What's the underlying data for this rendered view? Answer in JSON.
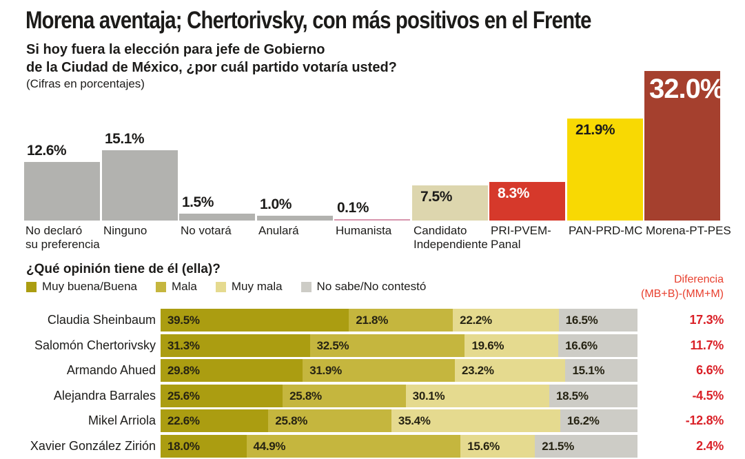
{
  "header": {
    "title": "Morena aventaja; Chertorivsky, con más positivos en el Frente",
    "question_line1": "Si hoy fuera la elección para jefe de Gobierno",
    "question_line2": "de la Ciudad de México, ¿por cuál partido votaría usted?",
    "note": "(Cifras en porcentajes)"
  },
  "colors": {
    "text_dark": "#1c1b19",
    "gray_bar": "#b2b2af",
    "humanista_pink": "#d795ad",
    "beige": "#ddd6ae",
    "pri_red": "#d6392b",
    "pan_yellow": "#f8d903",
    "morena_brick": "#a5402e",
    "seg_muy_buena": "#ab9d11",
    "seg_mala": "#c5b63e",
    "seg_muy_mala": "#e5da8f",
    "seg_no_sabe": "#cdccc6",
    "diff_header_red": "#e8402f",
    "diff_value_red": "#da2128",
    "white": "#ffffff"
  },
  "chart_data": [
    {
      "type": "bar",
      "title": "Si hoy fuera la elección para jefe de Gobierno de la Ciudad de México, ¿por cuál partido votaría usted?",
      "subtitle": "(Cifras en porcentajes)",
      "unit": "percent",
      "ylim": [
        0,
        32
      ],
      "grid": false,
      "categories": [
        "No declaró su preferencia",
        "Ninguno",
        "No votará",
        "Anulará",
        "Humanista",
        "Candidato Independiente",
        "PRI-PVEM-Panal",
        "PAN-PRD-MC",
        "Morena-PT-PES"
      ],
      "values": [
        12.6,
        15.1,
        1.5,
        1.0,
        0.1,
        7.5,
        8.3,
        21.9,
        32.0
      ],
      "bars": [
        {
          "name": "no-declaro",
          "label_lines": [
            "No declaró",
            "su preferencia"
          ],
          "value": 12.6,
          "display": "12.6%",
          "color_key": "gray_bar",
          "value_style": "above-dark"
        },
        {
          "name": "ninguno",
          "label_lines": [
            "Ninguno"
          ],
          "value": 15.1,
          "display": "15.1%",
          "color_key": "gray_bar",
          "value_style": "above-dark"
        },
        {
          "name": "no-votara",
          "label_lines": [
            "No votará"
          ],
          "value": 1.5,
          "display": "1.5%",
          "color_key": "gray_bar",
          "value_style": "above-dark"
        },
        {
          "name": "anulara",
          "label_lines": [
            "Anulará"
          ],
          "value": 1.0,
          "display": "1.0%",
          "color_key": "gray_bar",
          "value_style": "above-dark"
        },
        {
          "name": "humanista",
          "label_lines": [
            "Humanista"
          ],
          "value": 0.1,
          "display": "0.1%",
          "color_key": "humanista_pink",
          "value_style": "above-dark"
        },
        {
          "name": "candidato-independiente",
          "label_lines": [
            "Candidato",
            "Independiente"
          ],
          "value": 7.5,
          "display": "7.5%",
          "color_key": "beige",
          "value_style": "inside-dark"
        },
        {
          "name": "pri-pvem-panal",
          "label_lines": [
            "PRI-PVEM-",
            "Panal"
          ],
          "value": 8.3,
          "display": "8.3%",
          "color_key": "pri_red",
          "value_style": "inside-white"
        },
        {
          "name": "pan-prd-mc",
          "label_lines": [
            "PAN-PRD-MC"
          ],
          "value": 21.9,
          "display": "21.9%",
          "color_key": "pan_yellow",
          "value_style": "inside-dark"
        },
        {
          "name": "morena-pt-pes",
          "label_lines": [
            "Morena-PT-PES"
          ],
          "value": 32.0,
          "display": "32.0%",
          "color_key": "morena_brick",
          "value_style": "inside-white-big"
        }
      ]
    },
    {
      "type": "bar",
      "subtype": "stacked-horizontal-100",
      "title": "¿Qué opinión tiene de él (ella)?",
      "legend": [
        "Muy buena/Buena",
        "Mala",
        "Muy mala",
        "No sabe/No contestó"
      ],
      "legend_color_keys": [
        "seg_muy_buena",
        "seg_mala",
        "seg_muy_mala",
        "seg_no_sabe"
      ],
      "legend_position": "top-left",
      "diff_header": [
        "Diferencia",
        "(MB+B)-(MM+M)"
      ],
      "categories": [
        "Claudia Sheinbaum",
        "Salomón Chertorivsky",
        "Armando Ahued",
        "Alejandra Barrales",
        "Mikel Arriola",
        "Xavier González Zirión"
      ],
      "series": [
        {
          "name": "Muy buena/Buena",
          "color_key": "seg_muy_buena",
          "values": [
            39.5,
            31.3,
            29.8,
            25.6,
            22.6,
            18.0
          ]
        },
        {
          "name": "Mala",
          "color_key": "seg_mala",
          "values": [
            21.8,
            32.5,
            31.9,
            25.8,
            25.8,
            44.9
          ]
        },
        {
          "name": "Muy mala",
          "color_key": "seg_muy_mala",
          "values": [
            22.2,
            19.6,
            23.2,
            30.1,
            35.4,
            15.6
          ]
        },
        {
          "name": "No sabe/No contestó",
          "color_key": "seg_no_sabe",
          "values": [
            16.5,
            16.6,
            15.1,
            18.5,
            16.2,
            21.5
          ]
        }
      ],
      "diff_values": [
        17.3,
        11.7,
        6.6,
        -4.5,
        -12.8,
        2.4
      ],
      "diff_display": [
        "17.3%",
        "11.7%",
        "6.6%",
        "-4.5%",
        "-12.8%",
        "2.4%"
      ]
    }
  ]
}
